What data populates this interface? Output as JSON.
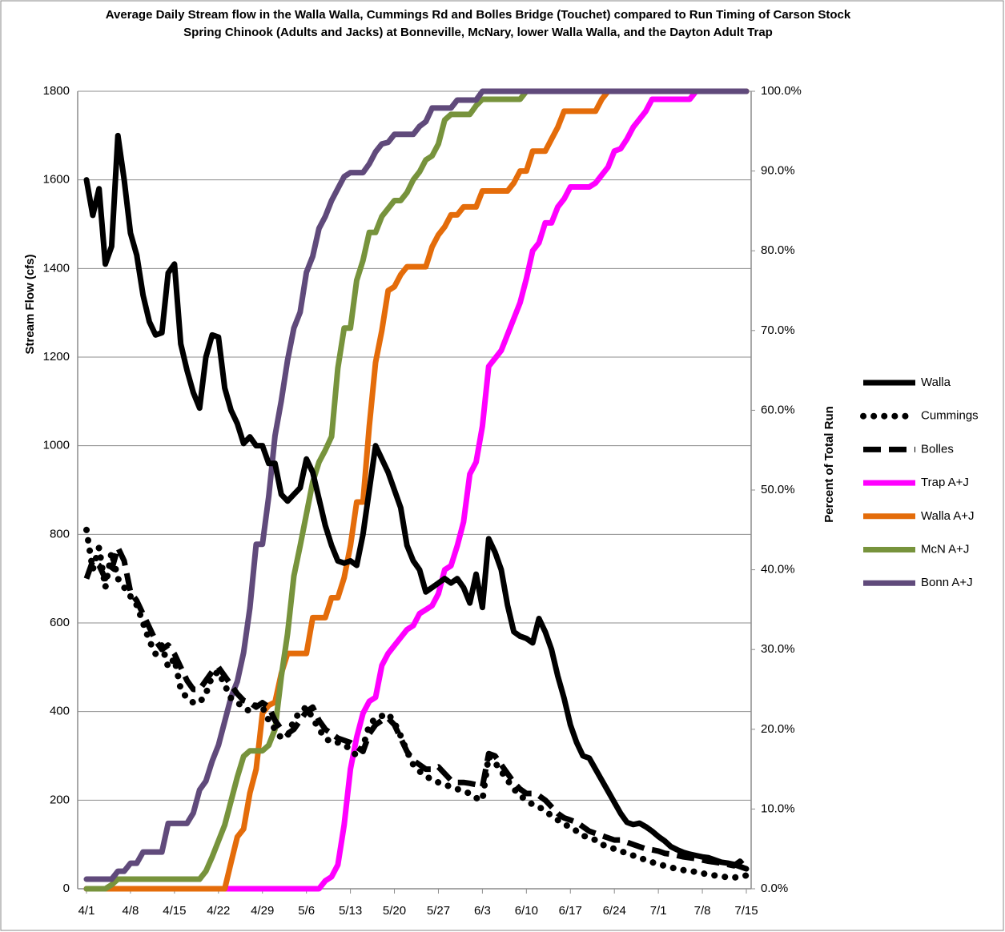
{
  "chart_data": {
    "type": "line",
    "title": "Average Daily Stream flow in the Walla Walla, Cummings Rd and Bolles Bridge (Touchet) compared to Run Timing of Carson Stock Spring Chinook (Adults and Jacks) at Bonneville, McNary, lower Walla Walla, and the Dayton Adult Trap",
    "y_label": "Stream Flow (cfs)",
    "y2_label": "Percent of Total Run",
    "categories": [
      "4/1",
      null,
      null,
      null,
      null,
      null,
      null,
      "4/8",
      null,
      null,
      null,
      null,
      null,
      null,
      "4/15",
      null,
      null,
      null,
      null,
      null,
      null,
      "4/22",
      null,
      null,
      null,
      null,
      null,
      null,
      "4/29",
      null,
      null,
      null,
      null,
      null,
      null,
      "5/6",
      null,
      null,
      null,
      null,
      null,
      null,
      "5/13",
      null,
      null,
      null,
      null,
      null,
      null,
      "5/20",
      null,
      null,
      null,
      null,
      null,
      null,
      "5/27",
      null,
      null,
      null,
      null,
      null,
      null,
      "6/3",
      null,
      null,
      null,
      null,
      null,
      null,
      "6/10",
      null,
      null,
      null,
      null,
      null,
      null,
      "6/17",
      null,
      null,
      null,
      null,
      null,
      null,
      "6/24",
      null,
      null,
      null,
      null,
      null,
      null,
      "7/1",
      null,
      null,
      null,
      null,
      null,
      null,
      "7/8",
      null,
      null,
      null,
      null,
      null,
      null,
      "7/15"
    ],
    "ylim": [
      0,
      1800
    ],
    "yticks": [
      0,
      200,
      400,
      600,
      800,
      1000,
      1200,
      1400,
      1600,
      1800
    ],
    "y2lim": [
      0,
      100
    ],
    "y2ticks": [
      {
        "value": 0,
        "label": "0.0%"
      },
      {
        "value": 10,
        "label": "10.0%"
      },
      {
        "value": 20,
        "label": "20.0%"
      },
      {
        "value": 30,
        "label": "30.0%"
      },
      {
        "value": 40,
        "label": "40.0%"
      },
      {
        "value": 50,
        "label": "50.0%"
      },
      {
        "value": 60,
        "label": "60.0%"
      },
      {
        "value": 70,
        "label": "70.0%"
      },
      {
        "value": 80,
        "label": "80.0%"
      },
      {
        "value": 90,
        "label": "90.0%"
      },
      {
        "value": 100,
        "label": "100.0%"
      }
    ],
    "grid": true,
    "legend": "right",
    "series": [
      {
        "name": "Walla",
        "color": "#000000",
        "style": "solid",
        "axis": "y",
        "values": [
          1600,
          1520,
          1580,
          1410,
          1450,
          1700,
          1600,
          1480,
          1430,
          1340,
          1280,
          1250,
          1255,
          1390,
          1410,
          1230,
          1170,
          1120,
          1085,
          1200,
          1250,
          1245,
          1130,
          1080,
          1050,
          1005,
          1020,
          1000,
          1000,
          960,
          960,
          890,
          875,
          890,
          905,
          970,
          940,
          880,
          820,
          775,
          740,
          735,
          740,
          730,
          800,
          900,
          1000,
          970,
          940,
          900,
          860,
          775,
          740,
          720,
          670,
          680,
          690,
          700,
          690,
          700,
          680,
          645,
          710,
          635,
          790,
          760,
          720,
          640,
          580,
          570,
          565,
          555,
          610,
          580,
          540,
          480,
          430,
          370,
          330,
          300,
          295,
          270,
          245,
          220,
          195,
          170,
          150,
          145,
          148,
          140,
          130,
          118,
          108,
          95,
          88,
          82,
          78,
          75,
          72,
          70,
          65,
          60,
          58,
          55,
          50,
          45
        ]
      },
      {
        "name": "Cummings",
        "color": "#000000",
        "style": "dotted",
        "axis": "y",
        "values": [
          810,
          720,
          770,
          680,
          760,
          700,
          680,
          660,
          640,
          600,
          560,
          530,
          550,
          500,
          520,
          450,
          430,
          420,
          420,
          440,
          480,
          490,
          460,
          430,
          420,
          410,
          400,
          415,
          410,
          380,
          360,
          340,
          345,
          380,
          400,
          410,
          385,
          360,
          340,
          330,
          330,
          325,
          315,
          300,
          320,
          370,
          385,
          390,
          395,
          375,
          345,
          310,
          280,
          265,
          255,
          245,
          240,
          235,
          230,
          225,
          220,
          215,
          205,
          200,
          300,
          285,
          265,
          245,
          225,
          210,
          200,
          190,
          185,
          175,
          165,
          155,
          145,
          140,
          130,
          120,
          115,
          110,
          100,
          95,
          90,
          85,
          80,
          75,
          70,
          65,
          60,
          55,
          52,
          48,
          45,
          42,
          40,
          38,
          35,
          32,
          30,
          28,
          26,
          25,
          28,
          30
        ]
      },
      {
        "name": "Bolles",
        "color": "#000000",
        "style": "dashed",
        "axis": "y",
        "values": [
          700,
          740,
          730,
          700,
          720,
          770,
          740,
          670,
          650,
          620,
          590,
          560,
          540,
          550,
          530,
          500,
          470,
          450,
          450,
          470,
          490,
          500,
          480,
          460,
          440,
          425,
          420,
          410,
          420,
          410,
          380,
          360,
          350,
          360,
          380,
          400,
          410,
          380,
          360,
          350,
          340,
          335,
          330,
          320,
          310,
          350,
          370,
          380,
          385,
          370,
          340,
          310,
          290,
          280,
          270,
          270,
          275,
          260,
          245,
          240,
          240,
          238,
          235,
          230,
          305,
          300,
          280,
          260,
          240,
          225,
          215,
          215,
          210,
          200,
          185,
          170,
          160,
          155,
          150,
          140,
          130,
          125,
          120,
          115,
          110,
          110,
          105,
          100,
          95,
          90,
          88,
          85,
          80,
          78,
          75,
          72,
          70,
          68,
          65,
          62,
          60,
          58,
          55,
          52,
          62,
          45
        ]
      },
      {
        "name": "Trap A+J",
        "color": "#ff00ff",
        "style": "solid",
        "axis": "y2",
        "values": [
          0,
          0,
          0,
          0,
          0,
          0,
          0,
          0,
          0,
          0,
          0,
          0,
          0,
          0,
          0,
          0,
          0,
          0,
          0,
          0,
          0,
          0,
          0,
          0,
          0,
          0,
          0,
          0,
          0,
          0,
          0,
          0,
          0,
          0,
          0,
          0,
          0,
          0,
          1,
          1.5,
          3,
          8,
          15,
          19,
          22,
          23.5,
          24,
          28,
          29.5,
          30.5,
          31.5,
          32.5,
          33,
          34.5,
          35,
          35.5,
          37,
          40,
          40.5,
          43,
          46,
          52,
          53.5,
          58,
          65.5,
          66.5,
          67.5,
          69.5,
          71.5,
          73.5,
          76.5,
          80,
          81,
          83.5,
          83.5,
          85.5,
          86.5,
          88,
          88,
          88,
          88,
          88.5,
          89.5,
          90.5,
          92.5,
          92.8,
          94,
          95.5,
          96.5,
          97.5,
          99,
          99,
          99,
          99,
          99,
          99,
          99,
          100,
          100,
          100,
          100,
          100,
          100,
          100,
          100,
          100
        ]
      },
      {
        "name": "Walla A+J",
        "color": "#e46c0a",
        "style": "solid",
        "axis": "y2",
        "values": [
          0,
          0,
          0,
          0,
          0,
          0,
          0,
          0,
          0,
          0,
          0,
          0,
          0,
          0,
          0,
          0,
          0,
          0,
          0,
          0,
          0,
          0,
          0,
          3.3,
          6.5,
          7.5,
          12,
          15,
          22,
          23,
          23.4,
          27,
          29.5,
          29.5,
          29.5,
          29.5,
          34,
          34,
          34,
          36.5,
          36.5,
          39,
          43,
          48.5,
          48.5,
          58,
          66,
          70,
          75,
          75.5,
          77,
          78,
          78,
          78,
          78,
          80.5,
          82,
          83,
          84.5,
          84.5,
          85.5,
          85.5,
          85.5,
          87.5,
          87.5,
          87.5,
          87.5,
          87.5,
          88.5,
          90,
          90,
          92.5,
          92.5,
          92.5,
          94,
          95.5,
          97.5,
          97.5,
          97.5,
          97.5,
          97.5,
          97.5,
          99,
          100,
          100,
          100,
          100,
          100,
          100,
          100,
          100,
          100,
          100,
          100,
          100,
          100,
          100,
          100,
          100,
          100,
          100,
          100,
          100,
          100,
          100,
          100
        ]
      },
      {
        "name": "McN A+J",
        "color": "#77933c",
        "style": "solid",
        "axis": "y2",
        "values": [
          0,
          0,
          0,
          0,
          0.5,
          1.2,
          1.2,
          1.2,
          1.2,
          1.2,
          1.2,
          1.2,
          1.2,
          1.2,
          1.2,
          1.2,
          1.2,
          1.2,
          1.2,
          2.2,
          4,
          6,
          8,
          11,
          14,
          16.6,
          17.3,
          17.3,
          17.3,
          18,
          20,
          26.6,
          32,
          39.2,
          43,
          47,
          51,
          53.5,
          55,
          56.7,
          65.3,
          70.3,
          70.3,
          76.3,
          78.8,
          82.3,
          82.3,
          84.3,
          85.3,
          86.3,
          86.3,
          87.3,
          88.9,
          89.9,
          91.4,
          91.9,
          93.4,
          96.4,
          97.1,
          97.1,
          97.1,
          97.1,
          98.2,
          99,
          99,
          99,
          99,
          99,
          99,
          99,
          100,
          100,
          100,
          100,
          100,
          100,
          100,
          100,
          100,
          100,
          100,
          100,
          100,
          100,
          100,
          100,
          100,
          100,
          100,
          100,
          100,
          100,
          100,
          100,
          100,
          100,
          100,
          100,
          100,
          100,
          100,
          100,
          100,
          100,
          100,
          100
        ]
      },
      {
        "name": "Bonn A+J",
        "color": "#604a7b",
        "style": "solid",
        "axis": "y2",
        "values": [
          1.2,
          1.2,
          1.2,
          1.2,
          1.2,
          2.2,
          2.2,
          3.2,
          3.2,
          4.6,
          4.6,
          4.6,
          4.6,
          8.2,
          8.2,
          8.2,
          8.2,
          9.5,
          12.4,
          13.5,
          16,
          18,
          21,
          24,
          26,
          29.6,
          35.2,
          43.2,
          43.2,
          49.2,
          56.8,
          61.2,
          66.3,
          70.3,
          72.3,
          77.3,
          79.3,
          82.8,
          84.3,
          86.3,
          87.8,
          89.3,
          89.8,
          89.8,
          89.8,
          90.9,
          92.4,
          93.4,
          93.6,
          94.6,
          94.6,
          94.6,
          94.6,
          95.6,
          96.2,
          97.9,
          97.9,
          97.9,
          97.9,
          98.9,
          98.9,
          98.9,
          98.9,
          100,
          100,
          100,
          100,
          100,
          100,
          100,
          100,
          100,
          100,
          100,
          100,
          100,
          100,
          100,
          100,
          100,
          100,
          100,
          100,
          100,
          100,
          100,
          100,
          100,
          100,
          100,
          100,
          100,
          100,
          100,
          100,
          100,
          100,
          100,
          100,
          100,
          100,
          100,
          100,
          100,
          100,
          100
        ]
      }
    ]
  }
}
